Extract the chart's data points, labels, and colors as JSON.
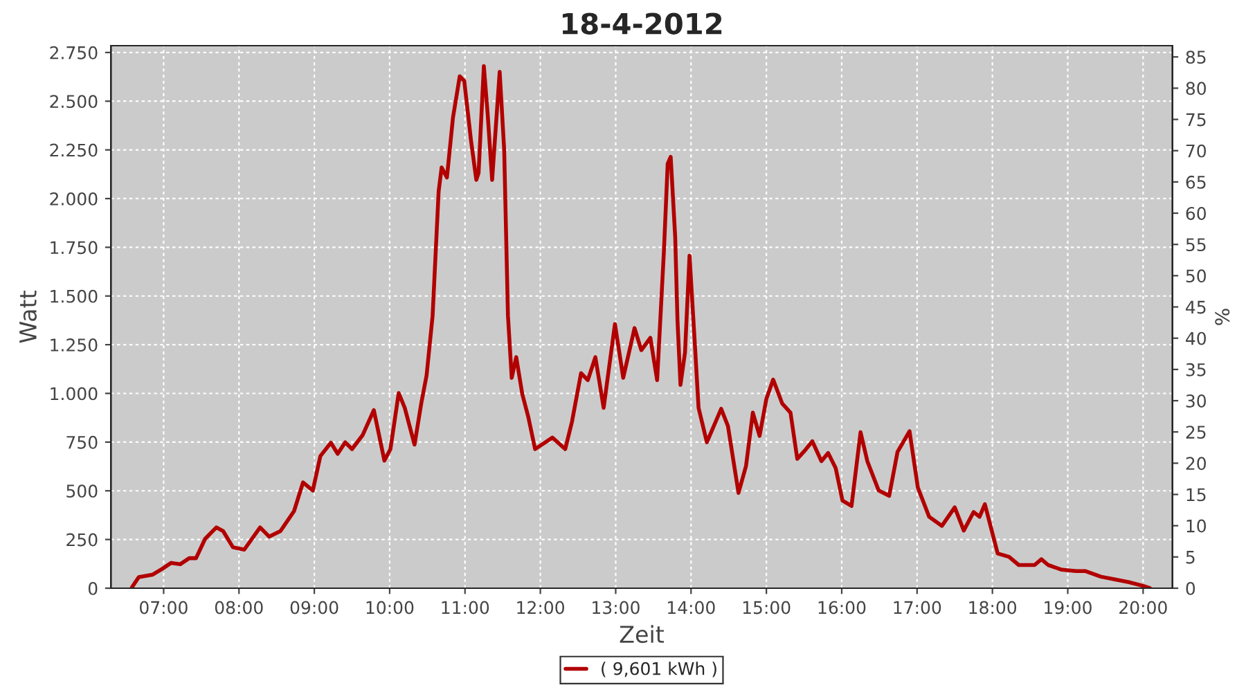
{
  "chart_data": {
    "type": "line",
    "title": "18-4-2012",
    "xlabel": "Zeit",
    "ylabel": "Watt",
    "y2label": "%",
    "xlim": [
      6.3,
      20.39
    ],
    "xticks": [
      {
        "value": 7,
        "label": "07:00"
      },
      {
        "value": 8,
        "label": "08:00"
      },
      {
        "value": 9,
        "label": "09:00"
      },
      {
        "value": 10,
        "label": "10:00"
      },
      {
        "value": 11,
        "label": "11:00"
      },
      {
        "value": 12,
        "label": "12:00"
      },
      {
        "value": 13,
        "label": "13:00"
      },
      {
        "value": 14,
        "label": "14:00"
      },
      {
        "value": 15,
        "label": "15:00"
      },
      {
        "value": 16,
        "label": "16:00"
      },
      {
        "value": 17,
        "label": "17:00"
      },
      {
        "value": 18,
        "label": "18:00"
      },
      {
        "value": 19,
        "label": "19:00"
      },
      {
        "value": 20,
        "label": "20:00"
      }
    ],
    "ylim": [
      0,
      2785
    ],
    "yticks": [
      0,
      250,
      500,
      750,
      {
        "value": 1000,
        "label": "1.000"
      },
      {
        "value": 1250,
        "label": "1.250"
      },
      {
        "value": 1500,
        "label": "1.500"
      },
      {
        "value": 1750,
        "label": "1.750"
      },
      {
        "value": 2000,
        "label": "2.000"
      },
      {
        "value": 2250,
        "label": "2.250"
      },
      {
        "value": 2500,
        "label": "2.500"
      },
      {
        "value": 2750,
        "label": "2.750"
      }
    ],
    "y2lim": [
      0,
      86.8
    ],
    "y2ticks": [
      0,
      5,
      10,
      15,
      20,
      25,
      30,
      35,
      40,
      45,
      50,
      55,
      60,
      65,
      70,
      75,
      80,
      85
    ],
    "grid": true,
    "legend": "bottom",
    "line_style": "solid",
    "marker": "none",
    "series": [
      {
        "name": "( 9,601 kWh )",
        "color": "#b20000",
        "x": [
          6.58,
          6.67,
          6.85,
          6.98,
          7.1,
          7.22,
          7.34,
          7.43,
          7.55,
          7.7,
          7.79,
          7.92,
          8.07,
          8.28,
          8.4,
          8.55,
          8.73,
          8.85,
          8.98,
          9.08,
          9.22,
          9.31,
          9.41,
          9.5,
          9.64,
          9.79,
          9.93,
          10.01,
          10.12,
          10.2,
          10.33,
          10.42,
          10.49,
          10.57,
          10.65,
          10.69,
          10.76,
          10.84,
          10.93,
          10.99,
          11.08,
          11.15,
          11.18,
          11.25,
          11.3,
          11.36,
          11.46,
          11.52,
          11.57,
          11.62,
          11.68,
          11.76,
          11.84,
          11.93,
          12.16,
          12.33,
          12.42,
          12.54,
          12.63,
          12.73,
          12.84,
          12.99,
          13.1,
          13.25,
          13.34,
          13.46,
          13.55,
          13.64,
          13.69,
          13.73,
          13.79,
          13.82,
          13.86,
          13.92,
          13.98,
          14.05,
          14.1,
          14.21,
          14.4,
          14.49,
          14.63,
          14.73,
          14.82,
          14.91,
          15.0,
          15.09,
          15.21,
          15.32,
          15.41,
          15.52,
          15.61,
          15.73,
          15.82,
          15.92,
          16.01,
          16.13,
          16.25,
          16.34,
          16.49,
          16.63,
          16.74,
          16.9,
          17.01,
          17.16,
          17.33,
          17.5,
          17.62,
          17.75,
          17.83,
          17.9,
          18.07,
          18.22,
          18.35,
          18.56,
          18.65,
          18.74,
          18.92,
          19.11,
          19.23,
          19.44,
          19.6,
          19.81,
          20.0,
          20.09
        ],
        "values": [
          5,
          57,
          69,
          99,
          130,
          123,
          154,
          154,
          253,
          312,
          293,
          210,
          198,
          312,
          265,
          293,
          395,
          543,
          501,
          678,
          747,
          690,
          749,
          714,
          785,
          914,
          655,
          714,
          1002,
          926,
          737,
          950,
          1092,
          1399,
          2037,
          2160,
          2108,
          2415,
          2628,
          2604,
          2297,
          2096,
          2131,
          2680,
          2438,
          2096,
          2651,
          2250,
          1399,
          1080,
          1186,
          997,
          879,
          714,
          773,
          714,
          855,
          1104,
          1068,
          1186,
          926,
          1356,
          1080,
          1335,
          1222,
          1285,
          1068,
          1730,
          2179,
          2214,
          1801,
          1375,
          1044,
          1210,
          1707,
          1257,
          926,
          749,
          921,
          832,
          489,
          628,
          901,
          782,
          972,
          1071,
          948,
          901,
          664,
          711,
          754,
          652,
          694,
          616,
          450,
          422,
          801,
          652,
          502,
          474,
          699,
          806,
          517,
          367,
          320,
          415,
          296,
          391,
          367,
          431,
          178,
          161,
          119,
          119,
          149,
          119,
          95,
          88,
          88,
          59,
          47,
          31,
          12,
          0
        ]
      }
    ]
  }
}
